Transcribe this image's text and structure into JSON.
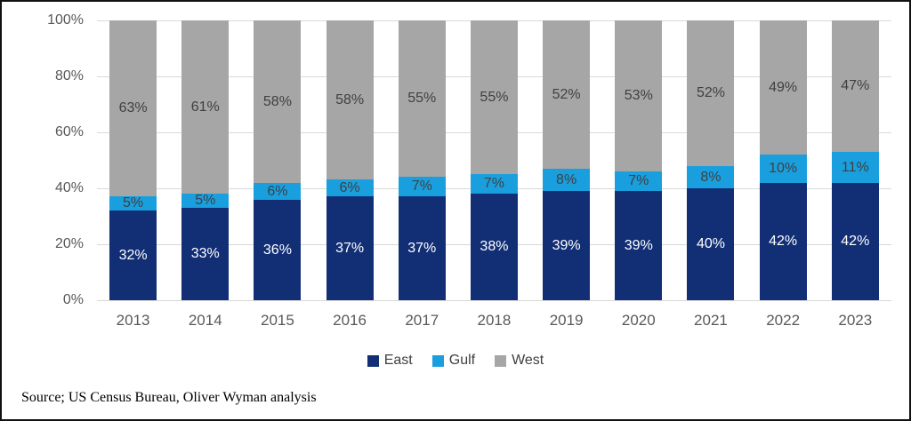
{
  "chart_data": {
    "type": "bar",
    "stacked": true,
    "title": "",
    "xlabel": "",
    "ylabel": "",
    "categories": [
      "2013",
      "2014",
      "2015",
      "2016",
      "2017",
      "2018",
      "2019",
      "2020",
      "2021",
      "2022",
      "2023"
    ],
    "series": [
      {
        "name": "East",
        "color": "#122F76",
        "label_color": "#FFFFFF",
        "values": [
          32,
          33,
          36,
          37,
          37,
          38,
          39,
          39,
          40,
          42,
          42
        ]
      },
      {
        "name": "Gulf",
        "color": "#1A9FDE",
        "label_color": "#404040",
        "values": [
          5,
          5,
          6,
          6,
          7,
          7,
          8,
          7,
          8,
          10,
          11
        ]
      },
      {
        "name": "West",
        "color": "#A6A6A6",
        "label_color": "#404040",
        "values": [
          63,
          61,
          58,
          58,
          55,
          55,
          52,
          53,
          52,
          49,
          47
        ]
      }
    ],
    "value_suffix": "%",
    "ylim": [
      0,
      100
    ],
    "yticks": [
      "0%",
      "20%",
      "40%",
      "60%",
      "80%",
      "100%"
    ],
    "grid": true,
    "legend_position": "bottom"
  },
  "source_note": "Source; US Census Bureau, Oliver Wyman analysis",
  "style": {
    "gridline_color": "#d9d9d9",
    "axis_text_color": "#595959",
    "legend_text_color": "#404040",
    "background": "#ffffff",
    "border_color": "#111111"
  }
}
